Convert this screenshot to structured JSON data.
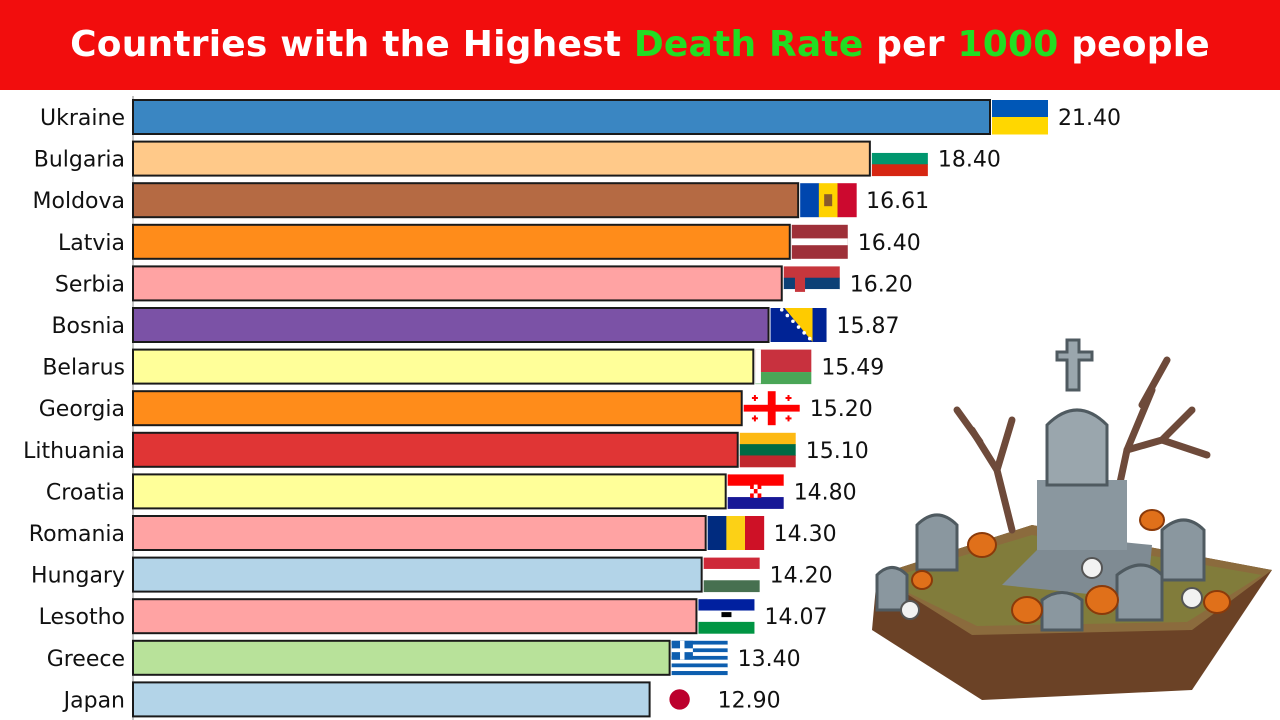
{
  "title": {
    "part1": "Countries with the Highest ",
    "highlight1": "Death Rate",
    "part2": " per ",
    "highlight2": "1000",
    "part3": " people"
  },
  "colors": {
    "title_bg": "#f20d0d",
    "title_highlight": "#22dd22"
  },
  "chart_data": {
    "type": "bar",
    "orientation": "horizontal",
    "title": "Countries with the Highest Death Rate per 1000 people",
    "categories": [
      "Ukraine",
      "Bulgaria",
      "Moldova",
      "Latvia",
      "Serbia",
      "Bosnia",
      "Belarus",
      "Georgia",
      "Lithuania",
      "Croatia",
      "Romania",
      "Hungary",
      "Lesotho",
      "Greece",
      "Japan"
    ],
    "values": [
      21.4,
      18.4,
      16.61,
      16.4,
      16.2,
      15.87,
      15.49,
      15.2,
      15.1,
      14.8,
      14.3,
      14.2,
      14.07,
      13.4,
      12.9
    ],
    "value_labels": [
      "21.40",
      "18.40",
      "16.61",
      "16.40",
      "16.20",
      "15.87",
      "15.49",
      "15.20",
      "15.10",
      "14.80",
      "14.30",
      "14.20",
      "14.07",
      "13.40",
      "12.90"
    ],
    "bar_colors": [
      "#3a86c2",
      "#ffc989",
      "#b56a43",
      "#ff8c1a",
      "#ffa3a3",
      "#7b52a6",
      "#ffff99",
      "#ff8c1a",
      "#e03535",
      "#ffff99",
      "#ffa3a3",
      "#b3d4e8",
      "#ffa3a3",
      "#b8e29a",
      "#b3d4e8"
    ],
    "flags": [
      "ukraine-flag",
      "bulgaria-flag",
      "moldova-flag",
      "latvia-flag",
      "serbia-flag",
      "bosnia-flag",
      "belarus-flag",
      "georgia-flag",
      "lithuania-flag",
      "croatia-flag",
      "romania-flag",
      "hungary-flag",
      "lesotho-flag",
      "greece-flag",
      "japan-flag"
    ],
    "xlim": [
      0,
      21.4
    ],
    "grid": false,
    "legend": "none"
  },
  "illustration": {
    "icon": "graveyard-illustration"
  }
}
